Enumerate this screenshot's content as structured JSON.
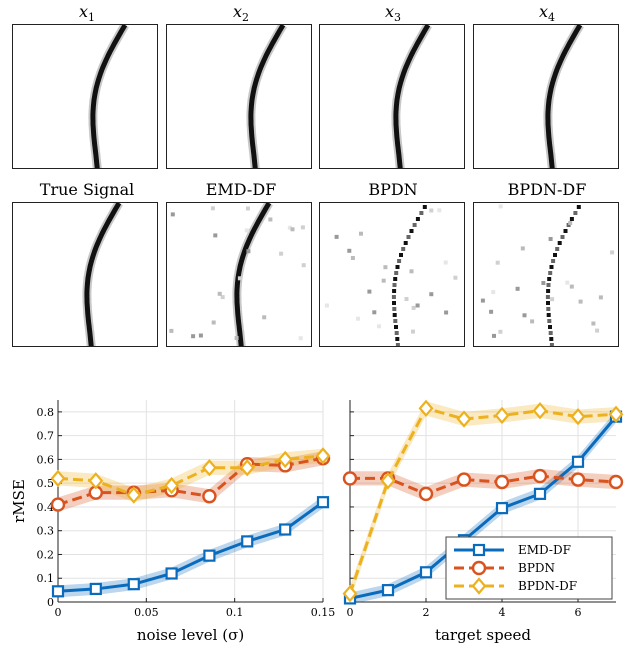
{
  "top_row_titles": [
    {
      "var": "x",
      "sub": "1"
    },
    {
      "var": "x",
      "sub": "2"
    },
    {
      "var": "x",
      "sub": "3"
    },
    {
      "var": "x",
      "sub": "4"
    }
  ],
  "bottom_row_titles": [
    "True Signal",
    "EMD-DF",
    "BPDN",
    "BPDN-DF"
  ],
  "colors": {
    "emd": "#0a6bbd",
    "bpdn": "#d9531e",
    "bpdndf": "#edb120"
  },
  "chart_data": [
    {
      "type": "line",
      "xlabel": "noise level (σ)",
      "ylabel": "rMSE",
      "xlim": [
        0,
        0.15
      ],
      "ylim": [
        0,
        0.85
      ],
      "xticks": [
        "0",
        "0.05",
        "0.1",
        "0.15"
      ],
      "yticks": [
        "0",
        "0.1",
        "0.2",
        "0.3",
        "0.4",
        "0.5",
        "0.6",
        "0.7",
        "0.8"
      ],
      "grid": true,
      "x": [
        0,
        0.0214,
        0.0429,
        0.0643,
        0.0857,
        0.1071,
        0.1286,
        0.15
      ],
      "series": [
        {
          "name": "EMD-DF",
          "marker": "square",
          "values": [
            0.045,
            0.055,
            0.075,
            0.12,
            0.195,
            0.255,
            0.305,
            0.42
          ]
        },
        {
          "name": "BPDN",
          "marker": "circle",
          "values": [
            0.41,
            0.46,
            0.46,
            0.47,
            0.445,
            0.58,
            0.575,
            0.605
          ]
        },
        {
          "name": "BPDN-DF",
          "marker": "diamond",
          "values": [
            0.52,
            0.51,
            0.45,
            0.49,
            0.565,
            0.565,
            0.6,
            0.615
          ]
        }
      ]
    },
    {
      "type": "line",
      "xlabel": "target speed",
      "ylabel": "",
      "xlim": [
        0,
        7
      ],
      "ylim": [
        0,
        0.85
      ],
      "xticks": [
        "0",
        "2",
        "4",
        "6"
      ],
      "grid": true,
      "legend_position": "bottom-right",
      "x": [
        0,
        1,
        2,
        3,
        4,
        5,
        6,
        7
      ],
      "series": [
        {
          "name": "EMD-DF",
          "marker": "square",
          "values": [
            0.015,
            0.05,
            0.125,
            0.26,
            0.395,
            0.455,
            0.59,
            0.78
          ]
        },
        {
          "name": "BPDN",
          "marker": "circle",
          "values": [
            0.52,
            0.52,
            0.455,
            0.515,
            0.505,
            0.53,
            0.515,
            0.505
          ]
        },
        {
          "name": "BPDN-DF",
          "marker": "diamond",
          "values": [
            0.035,
            0.51,
            0.815,
            0.77,
            0.785,
            0.805,
            0.78,
            0.79
          ]
        }
      ]
    }
  ]
}
